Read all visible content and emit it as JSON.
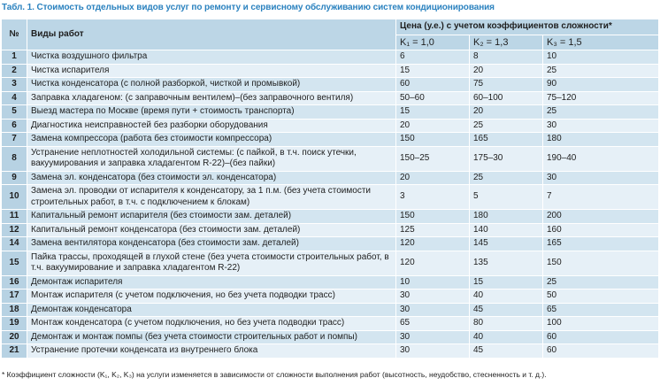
{
  "title": "Табл. 1. Стоимость отдельных видов услуг по ремонту и сервисному обслуживанию систем кондиционирования",
  "table": {
    "header": {
      "num": "№",
      "work": "Виды работ",
      "price": "Цена (у.е.) с учетом коэффициентов сложности*",
      "coefficients": [
        "K₁ = 1,0",
        "K₂ = 1,3",
        "K₃ = 1,5"
      ]
    },
    "rows": [
      [
        "1",
        "Чистка воздушного фильтра",
        "6",
        "8",
        "10"
      ],
      [
        "2",
        "Чистка испарителя",
        "15",
        "20",
        "25"
      ],
      [
        "3",
        "Чистка конденсатора (с полной разборкой, чисткой и промывкой)",
        "60",
        "75",
        "90"
      ],
      [
        "4",
        "Заправка хладагеном: (с заправочным вентилем)–(без заправочного вентиля)",
        "50–60",
        "60–100",
        "75–120"
      ],
      [
        "5",
        "Выезд мастера по Москве (время пути + стоимость транспорта)",
        "15",
        "20",
        "25"
      ],
      [
        "6",
        "Диагностика неисправностей без разборки оборудования",
        "20",
        "25",
        "30"
      ],
      [
        "7",
        "Замена компрессора (работа без стоимости компрессора)",
        "150",
        "165",
        "180"
      ],
      [
        "8",
        "Устранение неплотностей холодильной системы: (с пайкой, в т.ч. поиск утечки, вакуумирования и заправка хладагентом R-22)–(без пайки)",
        "150–25",
        "175–30",
        "190–40"
      ],
      [
        "9",
        "Замена эл. конденсатора (без стоимости эл. конденсатора)",
        "20",
        "25",
        "30"
      ],
      [
        "10",
        "Замена эл. проводки от испарителя к конденсатору, за 1 п.м. (без учета стоимости строительных работ, в т.ч. с подключением к блокам)",
        "3",
        "5",
        "7"
      ],
      [
        "11",
        "Капитальный ремонт испарителя (без стоимости зам. деталей)",
        "150",
        "180",
        "200"
      ],
      [
        "12",
        "Капитальный ремонт конденсатора (без стоимости зам. деталей)",
        "125",
        "140",
        "160"
      ],
      [
        "14",
        "Замена вентилятора конденсатора (без стоимости зам. деталей)",
        "120",
        "145",
        "165"
      ],
      [
        "15",
        "Пайка трассы, проходящей в глухой стене (без учета стоимости строительных работ, в т.ч. вакуумирование и заправка хладагентом R-22)",
        "120",
        "135",
        "150"
      ],
      [
        "16",
        "Демонтаж испарителя",
        "10",
        "15",
        "25"
      ],
      [
        "17",
        "Монтаж испарителя (с учетом подключения, но без учета подводки трасс)",
        "30",
        "40",
        "50"
      ],
      [
        "18",
        "Демонтаж конденсатора",
        "30",
        "45",
        "65"
      ],
      [
        "19",
        "Монтаж конденсатора (с учетом подключения, но без учета подводки трасс)",
        "65",
        "80",
        "100"
      ],
      [
        "20",
        "Демонтаж и монтаж помпы (без учета стоимости строительных работ и помпы)",
        "30",
        "40",
        "60"
      ],
      [
        "21",
        "Устранение протечки конденсата из внутреннего блока",
        "30",
        "45",
        "60"
      ]
    ]
  },
  "footnote": "* Коэффициент сложности (K₁, K₂, K₃) на услуги изменяется в зависимости от сложности выполнения работ (высотность, неудобство, стесненность и т. д.)."
}
